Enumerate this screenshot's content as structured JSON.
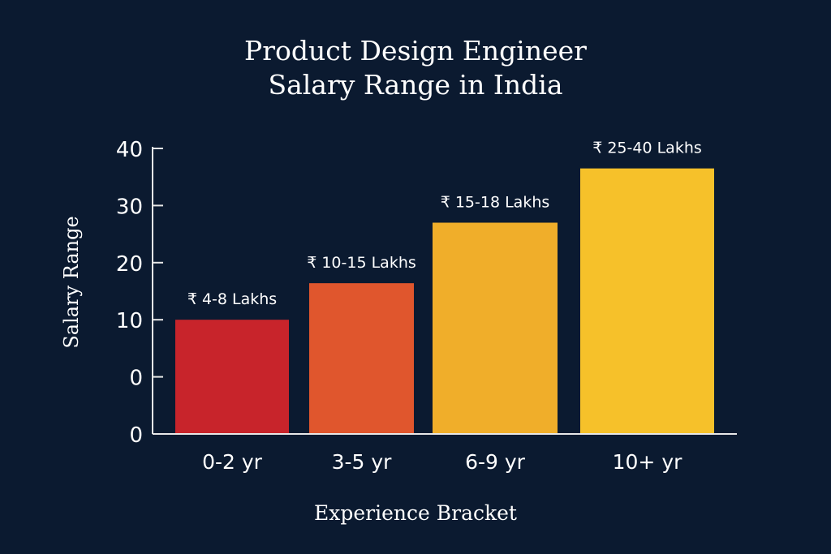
{
  "chart_data": {
    "type": "bar",
    "title": [
      "Product Design Engineer",
      "Salary Range in India"
    ],
    "xlabel": "Experience Bracket",
    "ylabel": "Salary Range",
    "categories": [
      "0-2 yr",
      "3-5 yr",
      "6-9 yr",
      "10+ yr"
    ],
    "values": [
      10,
      16.4,
      27,
      36.5
    ],
    "data_labels": [
      "₹ 4-8 Lakhs",
      "₹ 10-15 Lakhs",
      "₹ 15-18 Lakhs",
      "₹ 25-40 Lakhs"
    ],
    "y_tick_labels": [
      "0",
      "0",
      "10",
      "20",
      "30",
      "40"
    ],
    "ylim": [
      -10,
      40
    ],
    "grid": false,
    "colors": [
      "#c8242b",
      "#e0562d",
      "#f0ae2a",
      "#f6c12a"
    ],
    "background": "#0b1a30"
  }
}
